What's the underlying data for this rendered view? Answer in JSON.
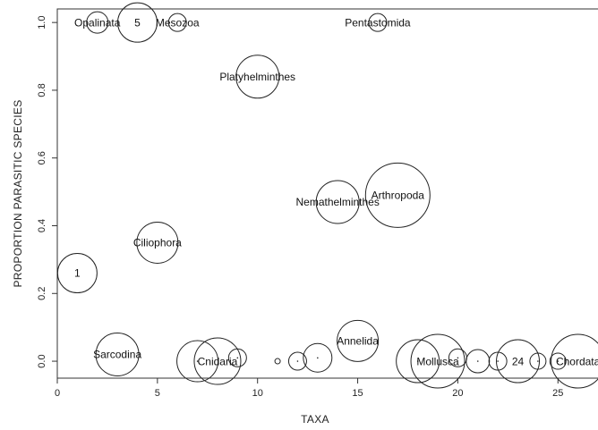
{
  "chart_data": {
    "type": "scatter",
    "title": "",
    "xlabel": "TAXA",
    "ylabel": "PROPORTION PARASITIC SPECIES",
    "xlim": [
      0,
      27
    ],
    "ylim": [
      -0.05,
      1.04
    ],
    "x_ticks": [
      "0",
      "5",
      "10",
      "15",
      "20",
      "25"
    ],
    "y_ticks": [
      "0.0",
      "0.2",
      "0.4",
      "0.6",
      "0.8",
      "1.0"
    ],
    "grid": false,
    "legend": "none",
    "points": [
      {
        "x": 1,
        "y": 0.26,
        "r": 22,
        "label": "1"
      },
      {
        "x": 2,
        "y": 1.0,
        "r": 12,
        "label": "Opalinata"
      },
      {
        "x": 3,
        "y": 0.02,
        "r": 24,
        "label": "Sarcodina"
      },
      {
        "x": 4,
        "y": 1.0,
        "r": 22,
        "label": "5"
      },
      {
        "x": 5,
        "y": 0.35,
        "r": 23,
        "label": "Ciliophora"
      },
      {
        "x": 6,
        "y": 1.0,
        "r": 10,
        "label": "Mesozoa"
      },
      {
        "x": 7,
        "y": 0.0,
        "r": 23,
        "label": ""
      },
      {
        "x": 8,
        "y": 0.0,
        "r": 26,
        "label": "Cnidaria"
      },
      {
        "x": 9,
        "y": 0.01,
        "r": 10,
        "label": ""
      },
      {
        "x": 10,
        "y": 0.84,
        "r": 24,
        "label": "Platyhelminthes"
      },
      {
        "x": 11,
        "y": 0.0,
        "r": 3,
        "label": ""
      },
      {
        "x": 12,
        "y": 0.0,
        "r": 10,
        "label": ""
      },
      {
        "x": 13,
        "y": 0.01,
        "r": 16,
        "label": ""
      },
      {
        "x": 14,
        "y": 0.47,
        "r": 24,
        "label": "Nemathelminthes"
      },
      {
        "x": 15,
        "y": 0.06,
        "r": 23,
        "label": "Annelida"
      },
      {
        "x": 16,
        "y": 1.0,
        "r": 10,
        "label": "Pentastomida"
      },
      {
        "x": 17,
        "y": 0.49,
        "r": 36,
        "label": "Arthropoda"
      },
      {
        "x": 18,
        "y": 0.0,
        "r": 24,
        "label": ""
      },
      {
        "x": 19,
        "y": 0.0,
        "r": 30,
        "label": "Mollusca"
      },
      {
        "x": 20,
        "y": 0.01,
        "r": 10,
        "label": ""
      },
      {
        "x": 21,
        "y": 0.0,
        "r": 13,
        "label": ""
      },
      {
        "x": 22,
        "y": 0.0,
        "r": 10,
        "label": ""
      },
      {
        "x": 23,
        "y": 0.0,
        "r": 24,
        "label": "24"
      },
      {
        "x": 24,
        "y": 0.0,
        "r": 9,
        "label": ""
      },
      {
        "x": 25,
        "y": 0.0,
        "r": 9,
        "label": ""
      },
      {
        "x": 26,
        "y": 0.0,
        "r": 30,
        "label": "Chordata"
      }
    ]
  }
}
